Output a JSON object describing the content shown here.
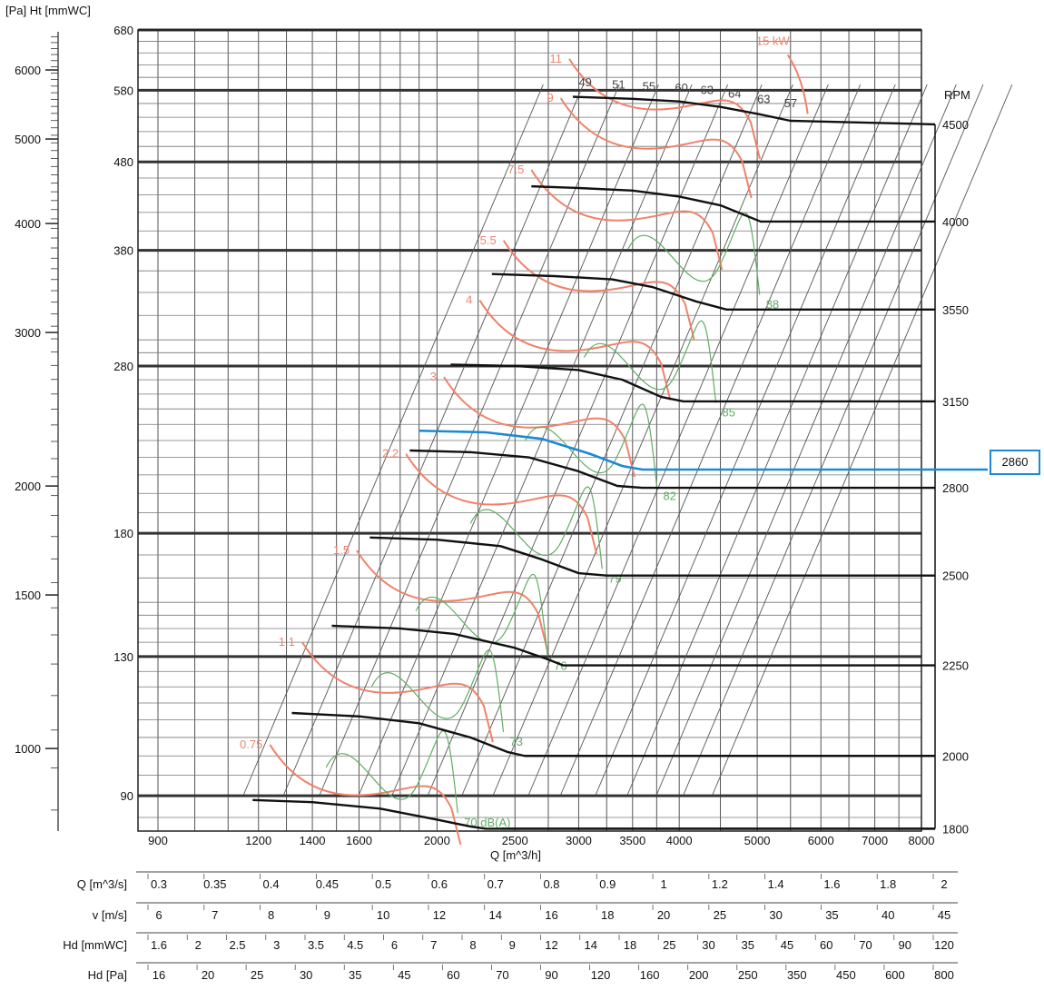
{
  "labels": {
    "left_axis_title": "[Pa] Ht [mmWC]",
    "rpm_title": "RPM",
    "x_axis_title": "Q [m^3/h]",
    "operating_point": "2860"
  },
  "colors": {
    "grid": "#444444",
    "speed_curve": "#111111",
    "power_curve": "#f0826a",
    "noise_curve": "#5fae63",
    "operating_curve": "#1a8ad4"
  },
  "chart_data": {
    "type": "line",
    "x_axis": {
      "label": "Q [m^3/h]",
      "scale": "log",
      "range": [
        850,
        8000
      ],
      "ticks": [
        900,
        1200,
        1400,
        1600,
        2000,
        2500,
        3000,
        3500,
        4000,
        5000,
        6000,
        7000,
        8000
      ]
    },
    "y_axis_mmwc": {
      "label": "Ht [mmWC]",
      "scale": "log",
      "range": [
        82,
        680
      ],
      "ticks": [
        90,
        130,
        180,
        280,
        380,
        480,
        580,
        680
      ]
    },
    "y_axis_pa": {
      "label": "[Pa]",
      "ticks": [
        1000,
        1500,
        2000,
        3000,
        4000,
        5000,
        6000
      ]
    },
    "speed_curves": [
      {
        "rpm": "4500",
        "points": [
          [
            2950,
            570
          ],
          [
            3500,
            567
          ],
          [
            4000,
            563
          ],
          [
            4500,
            555
          ],
          [
            5000,
            545
          ],
          [
            5500,
            535
          ]
        ],
        "right_level": 530
      },
      {
        "rpm": "4000",
        "points": [
          [
            2620,
            450
          ],
          [
            3000,
            448
          ],
          [
            3500,
            445
          ],
          [
            4000,
            438
          ],
          [
            4500,
            428
          ],
          [
            5050,
            410
          ]
        ],
        "right_level": 410
      },
      {
        "rpm": "3550",
        "points": [
          [
            2340,
            357
          ],
          [
            2800,
            355
          ],
          [
            3300,
            352
          ],
          [
            3700,
            345
          ],
          [
            4200,
            332
          ],
          [
            4580,
            325
          ]
        ],
        "right_level": 325
      },
      {
        "rpm": "3150",
        "points": [
          [
            2080,
            281
          ],
          [
            2500,
            280
          ],
          [
            3000,
            277
          ],
          [
            3400,
            270
          ],
          [
            3800,
            258
          ],
          [
            4050,
            255
          ]
        ],
        "right_level": 255
      },
      {
        "rpm": "2800",
        "points": [
          [
            1850,
            224
          ],
          [
            2200,
            223
          ],
          [
            2600,
            220
          ],
          [
            3000,
            212
          ],
          [
            3350,
            204
          ],
          [
            3600,
            203
          ]
        ],
        "right_level": 203
      },
      {
        "rpm": "2500",
        "points": [
          [
            1650,
            178
          ],
          [
            2000,
            177
          ],
          [
            2400,
            174
          ],
          [
            2700,
            168
          ],
          [
            3000,
            162
          ],
          [
            3250,
            161
          ]
        ],
        "right_level": 161
      },
      {
        "rpm": "2250",
        "points": [
          [
            1480,
            141
          ],
          [
            1800,
            140
          ],
          [
            2100,
            138
          ],
          [
            2500,
            133
          ],
          [
            2750,
            129
          ],
          [
            2870,
            127
          ]
        ],
        "right_level": 127
      },
      {
        "rpm": "2000",
        "points": [
          [
            1320,
            112
          ],
          [
            1600,
            111
          ],
          [
            1900,
            109
          ],
          [
            2200,
            105
          ],
          [
            2450,
            101
          ],
          [
            2570,
            100
          ]
        ],
        "right_level": 100
      },
      {
        "rpm": "1800",
        "points": [
          [
            1180,
            89
          ],
          [
            1400,
            88.5
          ],
          [
            1700,
            87
          ],
          [
            2000,
            84.5
          ],
          [
            2200,
            83
          ],
          [
            2300,
            82.5
          ]
        ],
        "right_level": 82.5
      }
    ],
    "operating_curve": {
      "rpm": "2860",
      "points": [
        [
          1900,
          236
        ],
        [
          2300,
          235
        ],
        [
          2700,
          231
        ],
        [
          3100,
          222
        ],
        [
          3400,
          215
        ],
        [
          3600,
          213
        ]
      ],
      "right_level": 213
    },
    "power_labels": [
      "0.75",
      "1.1",
      "1.5",
      "2.2",
      "3",
      "4",
      "5.5",
      "7.5",
      "9",
      "11",
      "15 kW"
    ],
    "noise_labels": [
      "70 dB(A)",
      "73",
      "76",
      "79",
      "82",
      "85",
      "88"
    ],
    "top_noise_labels": [
      "49",
      "51",
      "55",
      "60",
      "63",
      "64",
      "63",
      "57"
    ]
  },
  "scales": [
    {
      "label": "Q [m^3/s]",
      "values": [
        "0.3",
        "0.35",
        "0.4",
        "0.45",
        "0.5",
        "0.6",
        "0.7",
        "0.8",
        "0.9",
        "1",
        "1.2",
        "1.4",
        "1.6",
        "1.8",
        "2"
      ]
    },
    {
      "label": "v [m/s]",
      "values": [
        "6",
        "7",
        "8",
        "9",
        "10",
        "12",
        "14",
        "16",
        "18",
        "20",
        "25",
        "30",
        "35",
        "40",
        "45"
      ]
    },
    {
      "label": "Hd [mmWC]",
      "values": [
        "1.6",
        "2",
        "2.5",
        "3",
        "3.5",
        "4.5",
        "6",
        "7",
        "8",
        "9",
        "12",
        "14",
        "18",
        "25",
        "30",
        "35",
        "45",
        "60",
        "70",
        "90",
        "120"
      ]
    },
    {
      "label": "Hd [Pa]",
      "values": [
        "16",
        "20",
        "25",
        "30",
        "35",
        "45",
        "60",
        "70",
        "90",
        "120",
        "160",
        "200",
        "250",
        "350",
        "450",
        "600",
        "800"
      ]
    }
  ]
}
